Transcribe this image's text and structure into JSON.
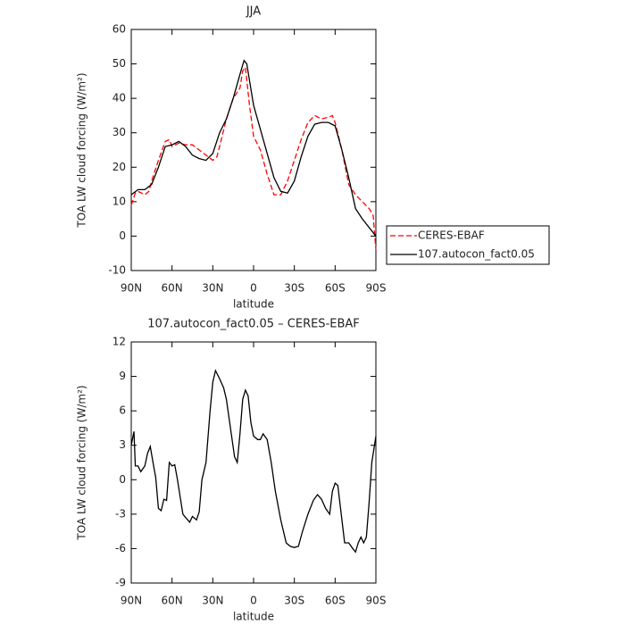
{
  "chart_data": [
    {
      "type": "line",
      "title": "JJA",
      "xlabel": "latitude",
      "ylabel": "TOA LW cloud forcing (W/m²)",
      "xlim": [
        90,
        -90
      ],
      "xticks": [
        {
          "value": 90,
          "label": "90N"
        },
        {
          "value": 60,
          "label": "60N"
        },
        {
          "value": 30,
          "label": "30N"
        },
        0,
        {
          "value": -30,
          "label": "30S"
        },
        {
          "value": -60,
          "label": "60S"
        },
        {
          "value": -90,
          "label": "90S"
        }
      ],
      "ylim": [
        -10,
        60
      ],
      "yticks": [
        -10,
        0,
        10,
        20,
        30,
        40,
        50,
        60
      ],
      "legend": "right",
      "series": [
        {
          "name": "CERES-EBAF",
          "color": "#ff0000",
          "dash": true,
          "x": [
            90,
            87,
            85,
            80,
            77,
            75,
            70,
            65,
            62,
            60,
            55,
            50,
            45,
            40,
            35,
            30,
            27,
            25,
            20,
            15,
            10,
            8,
            6,
            3,
            0,
            -5,
            -10,
            -15,
            -20,
            -25,
            -30,
            -35,
            -40,
            -45,
            -50,
            -55,
            -58,
            -60,
            -65,
            -70,
            -75,
            -80,
            -85,
            -88,
            -90
          ],
          "values": [
            9,
            12.5,
            13,
            12,
            13,
            16,
            22,
            27.5,
            28,
            26,
            27,
            26.5,
            26.5,
            25,
            23.5,
            22,
            23,
            26,
            34,
            40,
            43,
            48,
            49,
            38,
            29,
            25,
            18,
            12,
            12,
            16,
            22,
            28,
            33,
            35,
            34,
            34.5,
            35,
            33,
            25,
            15,
            12,
            10,
            8,
            6,
            -4
          ]
        },
        {
          "name": "107.autocon_fact0.05",
          "color": "#000000",
          "dash": false,
          "x": [
            90,
            85,
            80,
            75,
            70,
            65,
            60,
            55,
            50,
            45,
            40,
            35,
            30,
            25,
            20,
            15,
            10,
            7,
            5,
            0,
            -5,
            -10,
            -15,
            -20,
            -25,
            -30,
            -35,
            -40,
            -45,
            -50,
            -55,
            -60,
            -65,
            -70,
            -75,
            -80,
            -85,
            -90
          ],
          "values": [
            12,
            13.5,
            13.5,
            15,
            20,
            26,
            26.5,
            27.5,
            26,
            23.5,
            22.5,
            22,
            24,
            30,
            34,
            40,
            47,
            51,
            50,
            38,
            31,
            24,
            17,
            13,
            12.5,
            16,
            23,
            29,
            32.5,
            33,
            33,
            32,
            25,
            17,
            8,
            5,
            2.5,
            0
          ]
        }
      ]
    },
    {
      "type": "line",
      "title": "107.autocon_fact0.05 – CERES-EBAF",
      "xlabel": "latitude",
      "ylabel": "TOA LW cloud forcing (W/m²)",
      "xlim": [
        90,
        -90
      ],
      "xticks": [
        {
          "value": 90,
          "label": "90N"
        },
        {
          "value": 60,
          "label": "60N"
        },
        {
          "value": 30,
          "label": "30N"
        },
        0,
        {
          "value": -30,
          "label": "30S"
        },
        {
          "value": -60,
          "label": "60S"
        },
        {
          "value": -90,
          "label": "90S"
        }
      ],
      "ylim": [
        -9,
        12
      ],
      "yticks": [
        -9,
        -6,
        -3,
        0,
        3,
        6,
        9,
        12
      ],
      "series": [
        {
          "color": "#000000",
          "dash": false,
          "x": [
            90,
            88,
            87,
            85,
            83,
            80,
            78,
            76,
            74,
            72,
            70,
            68,
            66,
            64,
            62,
            60,
            58,
            56,
            54,
            52,
            50,
            47,
            45,
            42,
            40,
            38,
            35,
            32,
            30,
            28,
            25,
            22,
            20,
            17,
            14,
            12,
            10,
            8,
            6,
            4,
            2,
            0,
            -3,
            -5,
            -7,
            -10,
            -13,
            -16,
            -20,
            -24,
            -27,
            -30,
            -33,
            -36,
            -40,
            -44,
            -47,
            -50,
            -53,
            -56,
            -58,
            -60,
            -62,
            -64,
            -67,
            -70,
            -73,
            -75,
            -77,
            -79,
            -81,
            -83,
            -85,
            -87,
            -90
          ],
          "values": [
            3,
            4.2,
            1.2,
            1.2,
            0.7,
            1.2,
            2.3,
            2.9,
            1.5,
            0.2,
            -2.5,
            -2.7,
            -1.7,
            -1.8,
            1.5,
            1.2,
            1.3,
            0,
            -1.5,
            -3,
            -3.3,
            -3.7,
            -3.2,
            -3.5,
            -2.8,
            0,
            1.5,
            6,
            8.5,
            9.5,
            8.8,
            8,
            7,
            4.5,
            2,
            1.5,
            4,
            7,
            7.8,
            7.3,
            5,
            3.8,
            3.5,
            3.5,
            4,
            3.5,
            1.5,
            -1,
            -3.5,
            -5.5,
            -5.8,
            -5.9,
            -5.8,
            -4.5,
            -3,
            -1.8,
            -1.3,
            -1.7,
            -2.5,
            -3,
            -1,
            -0.3,
            -0.5,
            -2.5,
            -5.5,
            -5.5,
            -6,
            -6.3,
            -5.5,
            -5,
            -5.5,
            -5,
            -2,
            1.5,
            3.8
          ]
        }
      ]
    }
  ]
}
